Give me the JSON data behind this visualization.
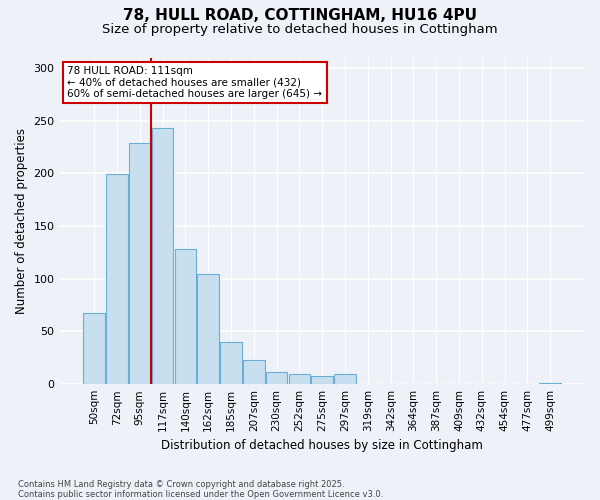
{
  "title_line1": "78, HULL ROAD, COTTINGHAM, HU16 4PU",
  "title_line2": "Size of property relative to detached houses in Cottingham",
  "xlabel": "Distribution of detached houses by size in Cottingham",
  "ylabel": "Number of detached properties",
  "categories": [
    "50sqm",
    "72sqm",
    "95sqm",
    "117sqm",
    "140sqm",
    "162sqm",
    "185sqm",
    "207sqm",
    "230sqm",
    "252sqm",
    "275sqm",
    "297sqm",
    "319sqm",
    "342sqm",
    "364sqm",
    "387sqm",
    "409sqm",
    "432sqm",
    "454sqm",
    "477sqm",
    "499sqm"
  ],
  "values": [
    68,
    199,
    229,
    243,
    128,
    105,
    40,
    23,
    12,
    10,
    8,
    10,
    0,
    0,
    0,
    0,
    0,
    0,
    0,
    0,
    1
  ],
  "bar_color": "#c8dff0",
  "bar_edge_color": "#6aaed6",
  "vline_x": 2.5,
  "annotation_text_line1": "78 HULL ROAD: 111sqm",
  "annotation_text_line2": "← 40% of detached houses are smaller (432)",
  "annotation_text_line3": "60% of semi-detached houses are larger (645) →",
  "annotation_box_facecolor": "#ffffff",
  "annotation_box_edgecolor": "#cc0000",
  "vline_color": "#cc0000",
  "background_color": "#eef2f8",
  "grid_color": "#ffffff",
  "footnote_line1": "Contains HM Land Registry data © Crown copyright and database right 2025.",
  "footnote_line2": "Contains public sector information licensed under the Open Government Licence v3.0.",
  "ylim": [
    0,
    310
  ],
  "yticks": [
    0,
    50,
    100,
    150,
    200,
    250,
    300
  ]
}
